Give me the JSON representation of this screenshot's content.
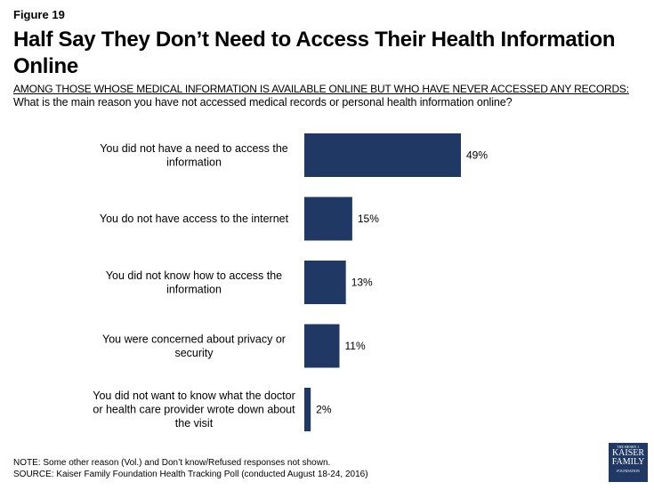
{
  "figure_label": "Figure 19",
  "title": "Half Say They Don’t Need to Access Their Health Information Online",
  "subtitle": "AMONG THOSE WHOSE MEDICAL INFORMATION IS AVAILABLE ONLINE BUT WHO HAVE NEVER ACCESSED ANY RECORDS:",
  "question": "What is the main reason you have not accessed medical records or personal health information online?",
  "note": "NOTE: Some other reason (Vol.) and Don’t know/Refused responses not shown.",
  "source": "SOURCE: Kaiser Family Foundation Health Tracking Poll (conducted August 18-24, 2016)",
  "logo": {
    "line1": "THE HENRY J.",
    "line2": "KAISER",
    "line3": "FAMILY",
    "line4": "FOUNDATION"
  },
  "chart_data": {
    "type": "bar",
    "orientation": "horizontal",
    "categories": [
      [
        "You did not have a need to access the",
        "information"
      ],
      [
        "You do not have access to the internet"
      ],
      [
        "You did not know how to access the",
        "information"
      ],
      [
        "You were concerned about privacy or",
        "security"
      ],
      [
        "You did not want to know what the doctor",
        "or health care provider wrote down about",
        "the visit"
      ]
    ],
    "values": [
      49,
      15,
      13,
      11,
      2
    ],
    "data_labels": [
      "49%",
      "15%",
      "13%",
      "11%",
      "2%"
    ],
    "color": "#1f3864",
    "grid": false
  }
}
